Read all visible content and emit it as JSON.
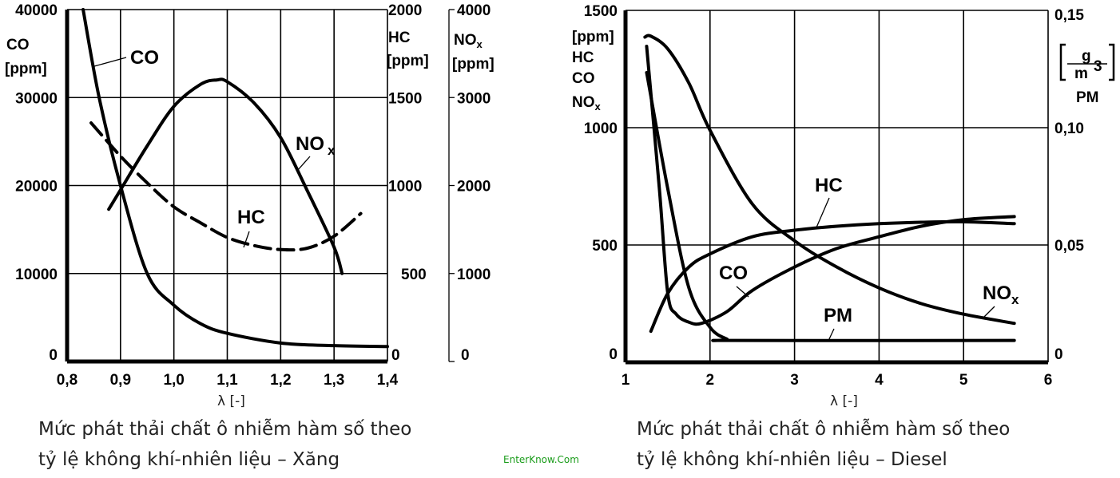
{
  "watermark": "EnterKnow.Com",
  "chart_data": [
    {
      "type": "line",
      "caption": [
        "Mức phát thải chất ô nhiễm hàm số theo",
        "tỷ lệ không khí-nhiên liệu – Xăng"
      ],
      "xlabel": "λ [-]",
      "xlim": [
        0.8,
        1.4
      ],
      "x_ticks": [
        "0,8",
        "0,9",
        "1,0",
        "1,1",
        "1,2",
        "1,3",
        "1,4"
      ],
      "grid": true,
      "axes": {
        "co": {
          "label": [
            "CO",
            "[ppm]"
          ],
          "lim": [
            0,
            40000
          ],
          "ticks": [
            "0",
            "10000",
            "20000",
            "30000",
            "40000"
          ]
        },
        "hc": {
          "label": [
            "HC",
            "[ppm]"
          ],
          "lim": [
            0,
            2000
          ],
          "ticks": [
            "0",
            "500",
            "1000",
            "1500",
            "2000"
          ]
        },
        "nox": {
          "label": [
            "NO",
            "x",
            "[ppm]"
          ],
          "lim": [
            0,
            4000
          ],
          "ticks": [
            "0",
            "1000",
            "2000",
            "3000",
            "4000"
          ]
        }
      },
      "series": [
        {
          "name": "CO",
          "axis": "co",
          "style": "solid",
          "x": [
            0.83,
            0.86,
            0.9,
            0.95,
            1.0,
            1.05,
            1.1,
            1.2,
            1.3,
            1.4
          ],
          "y": [
            40000,
            30000,
            20000,
            10000,
            6400,
            4300,
            3200,
            2100,
            1800,
            1700
          ]
        },
        {
          "name": "NOx",
          "axis": "nox",
          "style": "solid",
          "x": [
            0.878,
            0.9,
            0.95,
            1.0,
            1.05,
            1.08,
            1.1,
            1.15,
            1.2,
            1.25,
            1.3,
            1.315
          ],
          "y": [
            1730,
            1950,
            2450,
            2900,
            3150,
            3200,
            3180,
            2940,
            2545,
            1940,
            1300,
            1000
          ]
        },
        {
          "name": "HC",
          "axis": "hc",
          "style": "dashed",
          "x": [
            0.845,
            0.9,
            0.95,
            1.0,
            1.05,
            1.1,
            1.15,
            1.2,
            1.25,
            1.3,
            1.35
          ],
          "y": [
            1356,
            1167,
            1015,
            879,
            788,
            705,
            659,
            636,
            644,
            712,
            841
          ]
        }
      ],
      "annotations": [
        {
          "text": "CO"
        },
        {
          "text": "NO",
          "sub": "x"
        },
        {
          "text": "HC"
        }
      ]
    },
    {
      "type": "line",
      "caption": [
        "Mức phát thải chất ô nhiễm hàm số theo",
        "tỷ lệ không khí-nhiên liệu – Diesel"
      ],
      "xlabel": "λ [-]",
      "xlim": [
        1,
        6
      ],
      "x_ticks": [
        "1",
        "2",
        "3",
        "4",
        "5",
        "6"
      ],
      "grid": true,
      "axes": {
        "ppm": {
          "label": [
            "[ppm]",
            "HC",
            "CO",
            "NO",
            "x"
          ],
          "lim": [
            0,
            1500
          ],
          "ticks": [
            "0",
            "500",
            "1000",
            "1500"
          ]
        },
        "pm": {
          "label": [
            "g",
            "m",
            "3",
            "PM"
          ],
          "lim": [
            0,
            0.15
          ],
          "ticks": [
            "0",
            "0,05",
            "0,10",
            "0,15"
          ]
        }
      },
      "series": [
        {
          "name": "NOx",
          "axis": "ppm",
          "x": [
            1.23,
            1.3,
            1.5,
            1.75,
            2.0,
            2.5,
            3.0,
            3.5,
            4.0,
            4.5,
            5.0,
            5.6
          ],
          "y": [
            1386,
            1390,
            1336,
            1190,
            989,
            675,
            518,
            406,
            317,
            250,
            205,
            166
          ]
        },
        {
          "name": "HC",
          "axis": "ppm",
          "x": [
            1.3,
            1.5,
            1.75,
            2.0,
            2.5,
            3.0,
            3.5,
            4.0,
            4.5,
            5.0,
            5.6
          ],
          "y": [
            132,
            294,
            406,
            462,
            535,
            563,
            580,
            591,
            597,
            599,
            591
          ]
        },
        {
          "name": "CO",
          "axis": "ppm",
          "x": [
            1.25,
            1.4,
            1.5,
            1.6,
            1.75,
            1.9,
            2.2,
            2.5,
            3.0,
            3.5,
            4.0,
            4.5,
            5.0,
            5.6
          ],
          "y": [
            1347,
            742,
            294,
            205,
            171,
            166,
            216,
            306,
            406,
            485,
            535,
            580,
            608,
            621
          ]
        },
        {
          "name": "PM",
          "axis": "pm",
          "x": [
            1.25,
            1.5,
            1.75,
            2.0,
            2.2,
            2.3,
            5.6
          ],
          "y": [
            0.1235,
            0.074,
            0.0317,
            0.0149,
            0.0099,
            0.0093,
            0.0093
          ]
        }
      ],
      "annotations": [
        {
          "text": "HC"
        },
        {
          "text": "CO"
        },
        {
          "text": "PM"
        },
        {
          "text": "NO",
          "sub": "x"
        }
      ]
    }
  ]
}
